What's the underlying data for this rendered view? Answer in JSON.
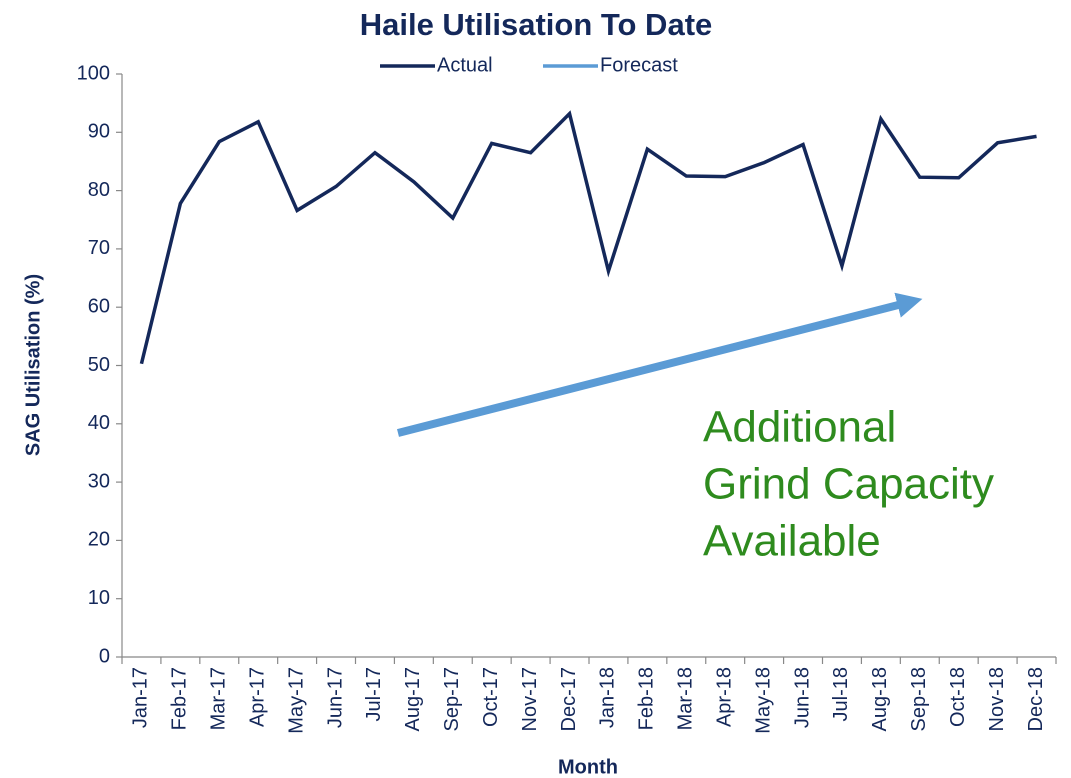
{
  "chart_data": {
    "type": "line",
    "title": "Haile Utilisation To Date",
    "xlabel": "Month",
    "ylabel": "SAG Utilisation (%)",
    "categories": [
      "Jan-17",
      "Feb-17",
      "Mar-17",
      "Apr-17",
      "May-17",
      "Jun-17",
      "Jul-17",
      "Aug-17",
      "Sep-17",
      "Oct-17",
      "Nov-17",
      "Dec-17",
      "Jan-18",
      "Feb-18",
      "Mar-18",
      "Apr-18",
      "May-18",
      "Jun-18",
      "Jul-18",
      "Aug-18",
      "Sep-18",
      "Oct-18",
      "Nov-18",
      "Dec-18"
    ],
    "series": [
      {
        "name": "Actual",
        "color": "#14285a",
        "values": [
          50.3,
          77.8,
          88.4,
          91.8,
          76.6,
          80.7,
          86.5,
          81.5,
          75.3,
          88.1,
          86.5,
          93.2,
          66.2,
          87.1,
          82.5,
          82.4,
          84.8,
          87.9,
          67.1,
          92.3,
          82.3,
          82.2,
          88.2,
          89.3
        ]
      },
      {
        "name": "Forecast",
        "color": "#5b9bd5",
        "values": [
          null,
          null,
          null,
          null,
          null,
          null,
          null,
          null,
          null,
          null,
          null,
          null,
          null,
          null,
          null,
          null,
          null,
          null,
          null,
          null,
          null,
          null,
          null,
          null
        ]
      }
    ],
    "ylim": [
      0,
      100
    ],
    "yticks": [
      0,
      10,
      20,
      30,
      40,
      50,
      60,
      70,
      80,
      90,
      100
    ],
    "annotation": [
      "Additional",
      "Grind Capacity",
      "Available"
    ],
    "annotation_color": "#2e8b1e"
  }
}
